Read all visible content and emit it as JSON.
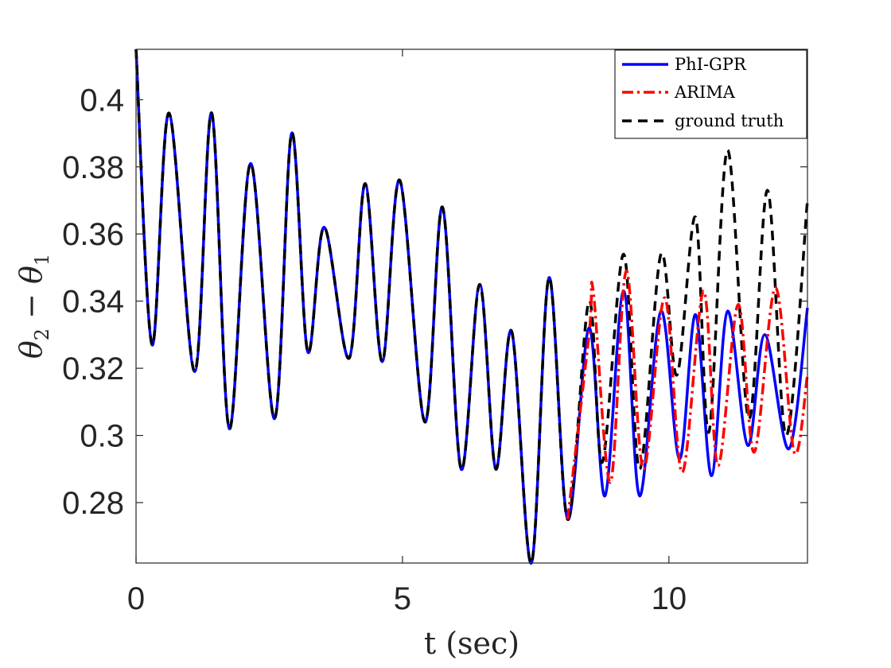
{
  "chart_data": {
    "type": "line",
    "title": "",
    "xlabel": "t (sec)",
    "ylabel": "θ2 − θ1",
    "ylabel_parts": {
      "theta": "θ",
      "sub_a": "2",
      "minus": " − ",
      "sub_b": "1"
    },
    "xlim": [
      0,
      12.6
    ],
    "ylim": [
      0.262,
      0.415
    ],
    "xticks": [
      0,
      5,
      10
    ],
    "xtick_labels": [
      "0",
      "5",
      "10"
    ],
    "yticks": [
      0.28,
      0.3,
      0.32,
      0.34,
      0.36,
      0.38,
      0.4
    ],
    "ytick_labels": [
      "0.28",
      "0.3",
      "0.32",
      "0.34",
      "0.36",
      "0.38",
      "0.4"
    ],
    "grid": false,
    "legend_position": "top-right",
    "series": [
      {
        "name": "PhI-GPR",
        "color": "#0000ff",
        "style": "solid",
        "points": [
          [
            0,
            0.415
          ],
          [
            0.3,
            0.327
          ],
          [
            0.62,
            0.396
          ],
          [
            1.1,
            0.319
          ],
          [
            1.42,
            0.396
          ],
          [
            1.75,
            0.302
          ],
          [
            2.15,
            0.381
          ],
          [
            2.6,
            0.305
          ],
          [
            2.92,
            0.39
          ],
          [
            3.22,
            0.325
          ],
          [
            3.53,
            0.362
          ],
          [
            4.0,
            0.323
          ],
          [
            4.3,
            0.375
          ],
          [
            4.62,
            0.322
          ],
          [
            4.95,
            0.376
          ],
          [
            5.42,
            0.304
          ],
          [
            5.75,
            0.368
          ],
          [
            6.1,
            0.29
          ],
          [
            6.45,
            0.345
          ],
          [
            6.75,
            0.29
          ],
          [
            7.05,
            0.331
          ],
          [
            7.42,
            0.262
          ],
          [
            7.75,
            0.347
          ],
          [
            8.1,
            0.275
          ],
          [
            8.5,
            0.332
          ],
          [
            8.8,
            0.282
          ],
          [
            9.15,
            0.343
          ],
          [
            9.45,
            0.282
          ],
          [
            9.85,
            0.337
          ],
          [
            10.2,
            0.293
          ],
          [
            10.5,
            0.336
          ],
          [
            10.8,
            0.288
          ],
          [
            11.1,
            0.337
          ],
          [
            11.48,
            0.297
          ],
          [
            11.8,
            0.33
          ],
          [
            12.25,
            0.296
          ],
          [
            12.6,
            0.338
          ]
        ]
      },
      {
        "name": "ARIMA",
        "color": "#ff0000",
        "style": "dashdot",
        "points": [
          [
            8.1,
            0.275
          ],
          [
            8.5,
            0.33
          ],
          [
            8.58,
            0.343
          ],
          [
            8.9,
            0.286
          ],
          [
            9.2,
            0.349
          ],
          [
            9.52,
            0.29
          ],
          [
            9.92,
            0.341
          ],
          [
            10.25,
            0.289
          ],
          [
            10.65,
            0.343
          ],
          [
            10.92,
            0.291
          ],
          [
            11.3,
            0.339
          ],
          [
            11.6,
            0.295
          ],
          [
            12.0,
            0.344
          ],
          [
            12.35,
            0.295
          ],
          [
            12.6,
            0.318
          ]
        ]
      },
      {
        "name": "ground truth",
        "color": "#000000",
        "style": "dashed",
        "points": [
          [
            0,
            0.415
          ],
          [
            0.3,
            0.327
          ],
          [
            0.62,
            0.396
          ],
          [
            1.1,
            0.319
          ],
          [
            1.42,
            0.396
          ],
          [
            1.75,
            0.302
          ],
          [
            2.15,
            0.381
          ],
          [
            2.6,
            0.305
          ],
          [
            2.92,
            0.39
          ],
          [
            3.22,
            0.325
          ],
          [
            3.53,
            0.362
          ],
          [
            4.0,
            0.323
          ],
          [
            4.3,
            0.375
          ],
          [
            4.62,
            0.322
          ],
          [
            4.95,
            0.376
          ],
          [
            5.42,
            0.304
          ],
          [
            5.75,
            0.368
          ],
          [
            6.1,
            0.29
          ],
          [
            6.45,
            0.345
          ],
          [
            6.75,
            0.29
          ],
          [
            7.05,
            0.331
          ],
          [
            7.42,
            0.262
          ],
          [
            7.75,
            0.347
          ],
          [
            8.1,
            0.275
          ],
          [
            8.5,
            0.34
          ],
          [
            8.75,
            0.292
          ],
          [
            9.15,
            0.354
          ],
          [
            9.45,
            0.29
          ],
          [
            9.85,
            0.354
          ],
          [
            10.15,
            0.318
          ],
          [
            10.5,
            0.365
          ],
          [
            10.75,
            0.301
          ],
          [
            11.1,
            0.385
          ],
          [
            11.5,
            0.305
          ],
          [
            11.85,
            0.373
          ],
          [
            12.2,
            0.3
          ],
          [
            12.6,
            0.37
          ]
        ]
      }
    ]
  }
}
